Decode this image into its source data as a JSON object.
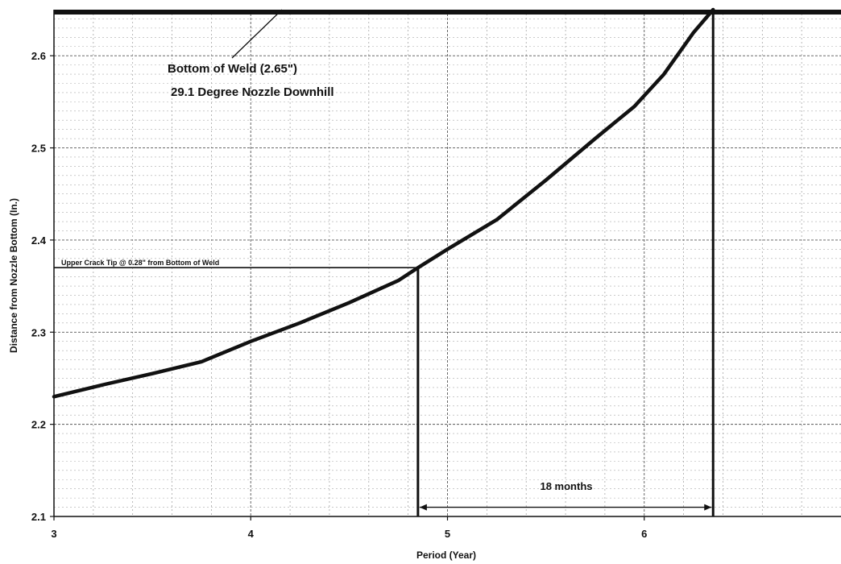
{
  "chart_data": {
    "type": "line",
    "title": "",
    "xlabel": "Period (Year)",
    "ylabel": "Distance from Nozzle Bottom (In.)",
    "xlim": [
      3,
      7
    ],
    "ylim": [
      2.1,
      2.65
    ],
    "x_ticks": [
      3,
      4,
      5,
      6
    ],
    "x_tick_labels": [
      "3",
      "4",
      "5",
      "6"
    ],
    "y_ticks": [
      2.1,
      2.2,
      2.3,
      2.4,
      2.5,
      2.6
    ],
    "y_tick_labels": [
      "2.1",
      "2.2",
      "2.3",
      "2.4",
      "2.5",
      "2.6"
    ],
    "grid": true,
    "series": [
      {
        "values": [
          [
            3.0,
            2.23
          ],
          [
            3.25,
            2.243
          ],
          [
            3.5,
            2.255
          ],
          [
            3.75,
            2.268
          ],
          [
            4.0,
            2.29
          ],
          [
            4.25,
            2.31
          ],
          [
            4.5,
            2.332
          ],
          [
            4.75,
            2.356
          ],
          [
            4.85,
            2.37
          ],
          [
            5.0,
            2.39
          ],
          [
            5.25,
            2.422
          ],
          [
            5.5,
            2.465
          ],
          [
            5.75,
            2.51
          ],
          [
            5.95,
            2.545
          ],
          [
            6.1,
            2.58
          ],
          [
            6.25,
            2.625
          ],
          [
            6.35,
            2.65
          ]
        ]
      }
    ],
    "reference_lines": {
      "weld_bottom_y": 2.65,
      "crack_tip_y": 2.37,
      "crack_tip_x": 4.85,
      "end_x": 6.35
    },
    "annotations": {
      "weld_label": "Bottom of Weld (2.65\")",
      "nozzle_label": "29.1 Degree Nozzle Downhill",
      "crack_label": "Upper Crack Tip @ 0.28\" from Bottom of Weld",
      "interval_label": "18 months",
      "interval_y": 2.11
    }
  }
}
